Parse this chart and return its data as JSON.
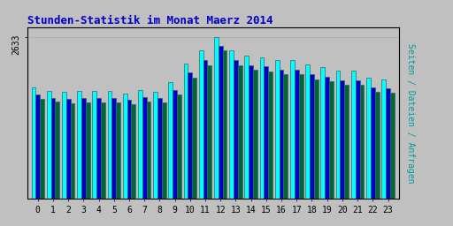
{
  "title": "Stunden-Statistik im Monat Maerz 2014",
  "ylabel_rotated": "Seiten / Dateien / Anfragen",
  "hours": [
    0,
    1,
    2,
    3,
    4,
    5,
    6,
    7,
    8,
    9,
    10,
    11,
    12,
    13,
    14,
    15,
    16,
    17,
    18,
    19,
    20,
    21,
    22,
    23
  ],
  "pages": [
    1820,
    1760,
    1740,
    1760,
    1760,
    1760,
    1720,
    1770,
    1750,
    1900,
    2200,
    2420,
    2633,
    2420,
    2330,
    2310,
    2270,
    2270,
    2190,
    2150,
    2090,
    2090,
    1970,
    1940
  ],
  "files": [
    1700,
    1650,
    1630,
    1640,
    1640,
    1640,
    1620,
    1660,
    1640,
    1780,
    2060,
    2260,
    2500,
    2260,
    2180,
    2160,
    2110,
    2110,
    2030,
    1990,
    1930,
    1930,
    1820,
    1800
  ],
  "requests": [
    1630,
    1580,
    1560,
    1570,
    1570,
    1570,
    1550,
    1590,
    1570,
    1700,
    1970,
    2170,
    2420,
    2170,
    2100,
    2080,
    2040,
    2040,
    1950,
    1920,
    1860,
    1860,
    1750,
    1730
  ],
  "bar_colors": [
    "#00ffff",
    "#0000cc",
    "#006633"
  ],
  "bar_edge_color": "#336666",
  "background_color": "#c0c0c0",
  "plot_bg_color": "#c0c0c0",
  "title_color": "#0000cc",
  "ylabel_color": "#009999",
  "tick_color": "#000000",
  "ytick_label": "2633",
  "ylim": [
    0,
    2800
  ],
  "title_fontsize": 9,
  "ylabel_fontsize": 7,
  "tick_fontsize": 7
}
